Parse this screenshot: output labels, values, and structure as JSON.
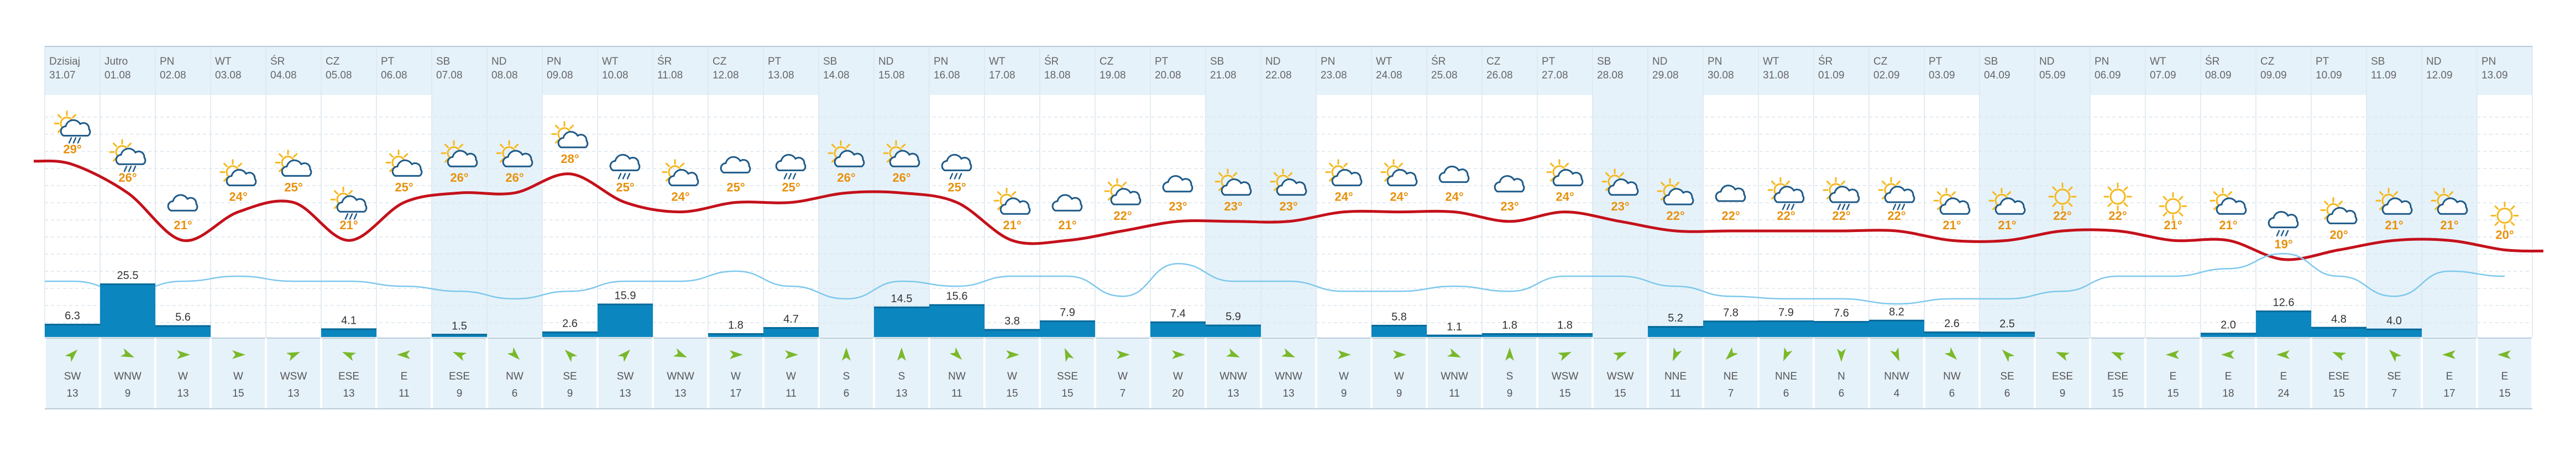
{
  "colors": {
    "header_bg": "#e6f2fa",
    "weekend_bg": "#e6f2fa",
    "grid": "#dce6ee",
    "border": "#b9cad8",
    "label": "#555555",
    "date_text": "#666666",
    "temp_line": "#c4111b",
    "temp_text": "#e8910c",
    "precip_bar": "#0c86be",
    "precip_bar_top": "#066a9a",
    "precip_text": "#333333",
    "wind_line": "#7ec8ec",
    "wind_arrow": "#7ab829",
    "sun": "#f5b81e",
    "cloud": "#1e5a88"
  },
  "chart_data": {
    "type": "line",
    "title": "",
    "xlabel": "",
    "ylabel": "",
    "grid": true,
    "legend": "none",
    "days": [
      "Dzisiaj",
      "Jutro",
      "PN",
      "WT",
      "ŚR",
      "CZ",
      "PT",
      "SB",
      "ND",
      "PN",
      "WT",
      "ŚR",
      "CZ",
      "PT",
      "SB",
      "ND",
      "PN",
      "WT",
      "ŚR",
      "CZ",
      "PT",
      "SB",
      "ND",
      "PN",
      "WT",
      "ŚR",
      "CZ",
      "PT",
      "SB",
      "ND",
      "PN",
      "WT",
      "ŚR",
      "CZ",
      "PT",
      "SB",
      "ND",
      "PN",
      "WT",
      "ŚR",
      "CZ",
      "PT",
      "SB",
      "ND",
      "PN"
    ],
    "dates": [
      "31.07",
      "01.08",
      "02.08",
      "03.08",
      "04.08",
      "05.08",
      "06.08",
      "07.08",
      "08.08",
      "09.08",
      "10.08",
      "11.08",
      "12.08",
      "13.08",
      "14.08",
      "15.08",
      "16.08",
      "17.08",
      "18.08",
      "19.08",
      "20.08",
      "21.08",
      "22.08",
      "23.08",
      "24.08",
      "25.08",
      "26.08",
      "27.08",
      "28.08",
      "29.08",
      "30.08",
      "31.08",
      "01.09",
      "02.09",
      "03.09",
      "04.09",
      "05.09",
      "06.09",
      "07.09",
      "08.09",
      "09.09",
      "10.09",
      "11.09",
      "12.09",
      "13.09"
    ],
    "weekend": [
      false,
      false,
      false,
      false,
      false,
      false,
      false,
      true,
      true,
      false,
      false,
      false,
      false,
      false,
      true,
      true,
      false,
      false,
      false,
      false,
      false,
      true,
      true,
      false,
      false,
      false,
      false,
      false,
      true,
      true,
      false,
      false,
      false,
      false,
      false,
      true,
      true,
      false,
      false,
      false,
      false,
      false,
      true,
      true,
      false
    ],
    "icons": [
      "cloud-rain-sun",
      "cloud-rain-sun",
      "cloud",
      "sun-cloud",
      "sun-cloud",
      "cloud-rain-sun",
      "sun-cloud",
      "sun-cloud",
      "sun-cloud",
      "sun-cloud",
      "cloud-rain",
      "sun-cloud",
      "cloud",
      "cloud-rain",
      "sun-cloud",
      "sun-cloud",
      "cloud-rain",
      "sun-cloud",
      "cloud",
      "sun-cloud",
      "cloud",
      "sun-cloud",
      "sun-cloud",
      "sun-cloud",
      "sun-cloud",
      "cloud",
      "cloud",
      "sun-cloud",
      "sun-cloud",
      "sun-cloud",
      "cloud",
      "cloud-rain-sun",
      "cloud-rain-sun",
      "cloud-rain-sun",
      "sun-cloud",
      "sun-cloud",
      "sun",
      "sun",
      "sun",
      "sun-cloud",
      "cloud-rain",
      "sun-cloud",
      "sun-cloud",
      "sun-cloud",
      "sun"
    ],
    "temperature": [
      29,
      26,
      21,
      24,
      25,
      21,
      25,
      26,
      26,
      28,
      25,
      24,
      25,
      25,
      26,
      26,
      25,
      21,
      21,
      22,
      23,
      23,
      23,
      24,
      24,
      24,
      23,
      24,
      23,
      22,
      22,
      22,
      22,
      22,
      21,
      21,
      22,
      22,
      21,
      21,
      19,
      20,
      21,
      21,
      20
    ],
    "temperature_unit": "°",
    "precipitation": [
      6.3,
      25.5,
      5.6,
      null,
      null,
      4.1,
      null,
      1.5,
      null,
      2.6,
      15.9,
      null,
      1.8,
      4.7,
      null,
      14.5,
      15.6,
      3.8,
      7.9,
      null,
      7.4,
      5.9,
      null,
      null,
      5.8,
      1.1,
      1.8,
      1.8,
      null,
      5.2,
      7.8,
      7.9,
      7.6,
      8.2,
      2.6,
      2.5,
      null,
      null,
      null,
      2.0,
      12.6,
      4.8,
      4.0,
      null,
      null
    ],
    "wind_dir": [
      "SW",
      "WNW",
      "W",
      "W",
      "WSW",
      "ESE",
      "E",
      "ESE",
      "NW",
      "SE",
      "SW",
      "WNW",
      "W",
      "W",
      "S",
      "S",
      "NW",
      "W",
      "SSE",
      "W",
      "W",
      "WNW",
      "WNW",
      "W",
      "W",
      "WNW",
      "S",
      "WSW",
      "WSW",
      "NNE",
      "NE",
      "NNE",
      "N",
      "NNW",
      "NW",
      "SE",
      "ESE",
      "ESE",
      "E",
      "E",
      "E",
      "ESE",
      "SE",
      "E",
      "E"
    ],
    "wind_speed": [
      13,
      9,
      13,
      15,
      13,
      13,
      11,
      9,
      6,
      9,
      13,
      13,
      17,
      11,
      6,
      13,
      11,
      15,
      15,
      7,
      20,
      13,
      13,
      9,
      9,
      11,
      9,
      15,
      15,
      11,
      7,
      6,
      6,
      4,
      6,
      6,
      9,
      15,
      15,
      18,
      24,
      15,
      7,
      17,
      15
    ]
  }
}
